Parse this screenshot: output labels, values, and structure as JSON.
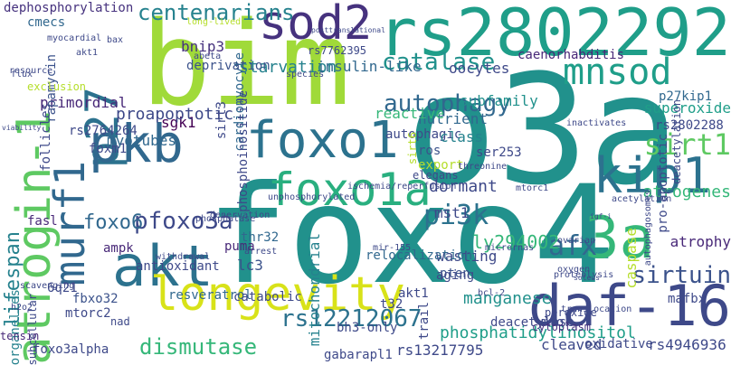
{
  "words": [
    {
      "text": "foxo4",
      "color": "#21918c"
    },
    {
      "text": "o3a",
      "color": "#21918c"
    },
    {
      "text": "bim",
      "color": "#a0da39"
    },
    {
      "text": "rs2802292",
      "color": "#1f9e89"
    },
    {
      "text": "sod2",
      "color": "#46327e"
    },
    {
      "text": "atrogin-1",
      "color": "#5ec962"
    },
    {
      "text": "murf1",
      "color": "#31688e"
    },
    {
      "text": "p27",
      "color": "#2c728e"
    },
    {
      "text": "pkb",
      "color": "#31688e"
    },
    {
      "text": "akt",
      "color": "#2c728e"
    },
    {
      "text": "foxo1",
      "color": "#2c728e"
    },
    {
      "text": "foxo1a",
      "color": "#29af7f"
    },
    {
      "text": "mnsod",
      "color": "#1f9e89"
    },
    {
      "text": "kip1",
      "color": "#2c728e"
    },
    {
      "text": "3a",
      "color": "#35b779"
    },
    {
      "text": "daf-16",
      "color": "#3e4989"
    },
    {
      "text": "longevity",
      "color": "#d8e219"
    },
    {
      "text": "pi3k",
      "color": "#2c728e"
    },
    {
      "text": "sirt1",
      "color": "#5ec962"
    },
    {
      "text": "sirtuin",
      "color": "#3b528b"
    },
    {
      "text": "afx",
      "color": "#31688e"
    },
    {
      "text": "pfoxo3a",
      "color": "#3e4989"
    },
    {
      "text": "lifespan",
      "color": "#26828e"
    },
    {
      "text": "catalase",
      "color": "#21918c"
    },
    {
      "text": "centenarians",
      "color": "#26828e"
    },
    {
      "text": "autophagy",
      "color": "#31688e"
    },
    {
      "text": "dismutase",
      "color": "#35b779"
    },
    {
      "text": "rs12212067",
      "color": "#2c728e"
    },
    {
      "text": "manganese",
      "color": "#21918c"
    },
    {
      "text": "phosphatidylinositol",
      "color": "#1f9e89"
    },
    {
      "text": "foxo6",
      "color": "#31688e"
    },
    {
      "text": "ly294002",
      "color": "#35b779"
    },
    {
      "text": "insulin-like",
      "color": "#31688e"
    },
    {
      "text": "starvation",
      "color": "#26828e"
    },
    {
      "text": "cardiomyocyte",
      "color": "#31688e"
    },
    {
      "text": "deprivation",
      "color": "#3b528b"
    },
    {
      "text": "phosphoinositide",
      "color": "#3e4989"
    },
    {
      "text": "oocytes",
      "color": "#3e4989"
    },
    {
      "text": "caenorhabditis",
      "color": "#482878"
    },
    {
      "text": "superoxide",
      "color": "#1f9e89"
    },
    {
      "text": "p27kip1",
      "color": "#31688e"
    },
    {
      "text": "atrogenes",
      "color": "#35b779"
    },
    {
      "text": "atrophy",
      "color": "#482878"
    },
    {
      "text": "dormant",
      "color": "#3e4989"
    },
    {
      "text": "mst1",
      "color": "#3e4989"
    },
    {
      "text": "wasting",
      "color": "#3e4989"
    },
    {
      "text": "pten",
      "color": "#3b528b"
    },
    {
      "text": "sgk1",
      "color": "#440154"
    },
    {
      "text": "autophagic",
      "color": "#3e4989"
    },
    {
      "text": "class",
      "color": "#26828e"
    },
    {
      "text": "nutrient",
      "color": "#31688e"
    },
    {
      "text": "reactive",
      "color": "#35b779"
    },
    {
      "text": "subfamily",
      "color": "#21918c"
    },
    {
      "text": "ros",
      "color": "#3b528b"
    },
    {
      "text": "ser253",
      "color": "#3e4989"
    },
    {
      "text": "export",
      "color": "#b5de2b"
    },
    {
      "text": "sirt3",
      "color": "#3e4989"
    },
    {
      "text": "proapoptotic",
      "color": "#3e4989"
    },
    {
      "text": "myotubes",
      "color": "#31688e"
    },
    {
      "text": "rs2764264",
      "color": "#3e4989"
    },
    {
      "text": "foxm1",
      "color": "#3e4989"
    },
    {
      "text": "primordial",
      "color": "#482878"
    },
    {
      "text": "follicles",
      "color": "#3e4989"
    },
    {
      "text": "rapamycin",
      "color": "#3b528b"
    },
    {
      "text": "cmecs",
      "color": "#31688e"
    },
    {
      "text": "dephosphorylation",
      "color": "#46327e"
    },
    {
      "text": "rs7762395",
      "color": "#3e4989"
    },
    {
      "text": "bnip3",
      "color": "#46327e"
    },
    {
      "text": "fasl",
      "color": "#482878"
    },
    {
      "text": "ampk",
      "color": "#482878"
    },
    {
      "text": "puma",
      "color": "#482878"
    },
    {
      "text": "lc3",
      "color": "#3b528b"
    },
    {
      "text": "mitochondrial",
      "color": "#26828e"
    },
    {
      "text": "relocalization",
      "color": "#31688e"
    },
    {
      "text": "thr32",
      "color": "#31688e"
    },
    {
      "text": "antioxidant",
      "color": "#3e4989"
    },
    {
      "text": "resveratrol",
      "color": "#31688e"
    },
    {
      "text": "catabolic",
      "color": "#3e4989"
    },
    {
      "text": "fbxo32",
      "color": "#3b528b"
    },
    {
      "text": "mtorc2",
      "color": "#3e4989"
    },
    {
      "text": "subcellular",
      "color": "#3e4989"
    },
    {
      "text": "organelles",
      "color": "#26828e"
    },
    {
      "text": "tensin",
      "color": "#482878"
    },
    {
      "text": "foxo3alpha",
      "color": "#3e4989"
    },
    {
      "text": "gabarapl1",
      "color": "#3e4989"
    },
    {
      "text": "rs13217795",
      "color": "#3e4989"
    },
    {
      "text": "cleaved",
      "color": "#3e4989"
    },
    {
      "text": "oxidative",
      "color": "#3e4989"
    },
    {
      "text": "rs4946936",
      "color": "#3e4989"
    },
    {
      "text": "bh3-only",
      "color": "#3e4989"
    },
    {
      "text": "t32",
      "color": "#3e4989"
    },
    {
      "text": "akt1",
      "color": "#3e4989"
    },
    {
      "text": "mafbx",
      "color": "#3e4989"
    },
    {
      "text": "mtor",
      "color": "#3e4989"
    },
    {
      "text": "deacetylase",
      "color": "#3e4989"
    },
    {
      "text": "cytoplasm",
      "color": "#46327e"
    },
    {
      "text": "peroxide",
      "color": "#3e4989"
    },
    {
      "text": "caspase",
      "color": "#b5de2b"
    },
    {
      "text": "aging",
      "color": "#3e4989"
    },
    {
      "text": "pro-apoptotic",
      "color": "#3e4989"
    },
    {
      "text": "trail",
      "color": "#3e4989"
    },
    {
      "text": "6q21",
      "color": "#3e4989"
    },
    {
      "text": "rs2802288",
      "color": "#3e4989"
    },
    {
      "text": "deacetylation",
      "color": "#3e4989"
    },
    {
      "text": "scavenging",
      "color": "#3e4989"
    },
    {
      "text": "withdrawal",
      "color": "#3e4989"
    },
    {
      "text": "nad",
      "color": "#3e4989"
    },
    {
      "text": "myocardial",
      "color": "#3e4989"
    },
    {
      "text": "akt1",
      "color": "#3e4989"
    },
    {
      "text": "flux",
      "color": "#3e4989"
    },
    {
      "text": "exclusion",
      "color": "#b5de2b"
    },
    {
      "text": "resource",
      "color": "#3e4989"
    },
    {
      "text": "long-lived",
      "color": "#b5de2b"
    },
    {
      "text": "bax",
      "color": "#3e4989"
    },
    {
      "text": "abeta",
      "color": "#3e4989"
    },
    {
      "text": "species",
      "color": "#3e4989"
    },
    {
      "text": "elegans",
      "color": "#3e4989"
    },
    {
      "text": "sirt6",
      "color": "#b5de2b"
    },
    {
      "text": "threonine",
      "color": "#3e4989"
    },
    {
      "text": "mtorc1",
      "color": "#3e4989"
    },
    {
      "text": "acetylation",
      "color": "#3e4989"
    },
    {
      "text": "autophagosomes",
      "color": "#3e4989"
    },
    {
      "text": "mir-155",
      "color": "#3e4989"
    },
    {
      "text": "arrest",
      "color": "#3e4989"
    },
    {
      "text": "micrornas",
      "color": "#3e4989"
    },
    {
      "text": "ischemia/reperfusion",
      "color": "#3e4989"
    },
    {
      "text": "unphosphorylated",
      "color": "#3e4989"
    },
    {
      "text": "denervation",
      "color": "#3e4989"
    },
    {
      "text": "phosphatase",
      "color": "#3e4989"
    },
    {
      "text": "translocation",
      "color": "#3e4989"
    },
    {
      "text": "proteolysis",
      "color": "#3e4989"
    },
    {
      "text": "h2o2",
      "color": "#3e4989"
    },
    {
      "text": "inactivates",
      "color": "#3e4989"
    },
    {
      "text": "ovarian",
      "color": "#3e4989"
    },
    {
      "text": "bcl-2",
      "color": "#3e4989"
    },
    {
      "text": "oxygen",
      "color": "#3e4989"
    },
    {
      "text": "posttranslational",
      "color": "#3e4989"
    },
    {
      "text": "viability",
      "color": "#3e4989"
    },
    {
      "text": "igf-i",
      "color": "#3e4989"
    },
    {
      "text": "soleus",
      "color": "#3e4989"
    }
  ]
}
